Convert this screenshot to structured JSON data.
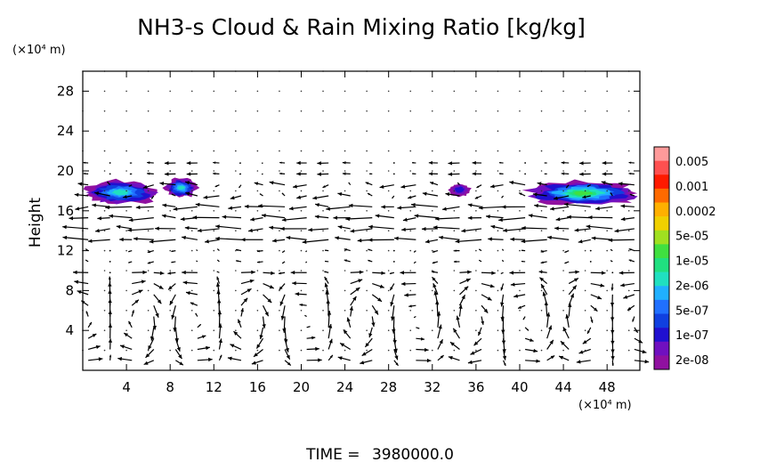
{
  "chart_data": {
    "type": "heatmap",
    "title": "NH3-s Cloud & Rain Mixing Ratio [kg/kg]",
    "ylabel": "Height",
    "y_unit": "(×10⁴ m)",
    "x_unit": "(×10⁴ m)",
    "xlim": [
      0,
      51
    ],
    "ylim": [
      0,
      30
    ],
    "x_ticks": [
      4,
      8,
      12,
      16,
      20,
      24,
      28,
      32,
      36,
      40,
      44,
      48
    ],
    "y_ticks": [
      4,
      8,
      12,
      16,
      20,
      24,
      28
    ],
    "colorbar": {
      "labels": [
        "0.005",
        "0.001",
        "0.0002",
        "5e-05",
        "1e-05",
        "2e-06",
        "5e-07",
        "1e-07",
        "2e-08"
      ],
      "colors": [
        "#ff9a9a",
        "#ff5050",
        "#ff1a00",
        "#ff6a00",
        "#ffb000",
        "#f0d000",
        "#a0e020",
        "#40e040",
        "#20e080",
        "#20e0c0",
        "#20b0ff",
        "#2070ff",
        "#1040e0",
        "#2010d0",
        "#7010c0",
        "#9010a0"
      ]
    },
    "cloud_regions": [
      {
        "x": [
          0,
          7
        ],
        "y": [
          16.6,
          19.1
        ],
        "max_level": "2e-06"
      },
      {
        "x": [
          7.5,
          10.5
        ],
        "y": [
          17.3,
          19.3
        ],
        "max_level": "2e-06"
      },
      {
        "x": [
          33.5,
          35.5
        ],
        "y": [
          17.4,
          18.8
        ],
        "max_level": "1e-07"
      },
      {
        "x": [
          40.5,
          51
        ],
        "y": [
          16.5,
          19.0
        ],
        "max_level": "1e-05"
      }
    ],
    "vector_field": {
      "description_visible": "wind vectors over full domain",
      "strong_westward_band_y": [
        13.5,
        16.5
      ]
    },
    "time_label": "TIME =",
    "time_value": "3980000.0"
  }
}
